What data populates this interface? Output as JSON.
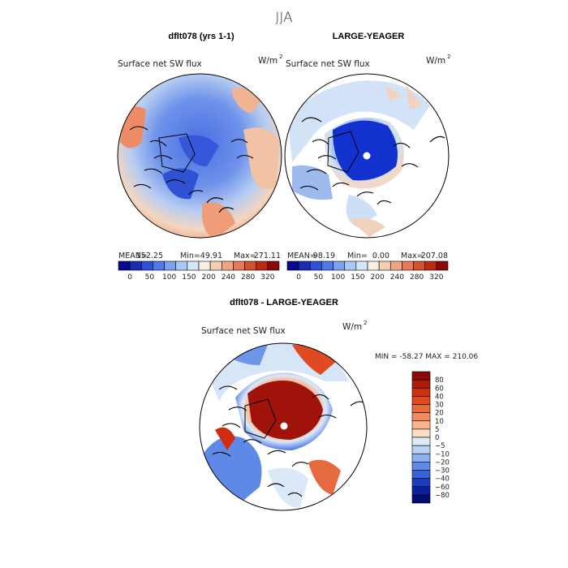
{
  "season": "JJA",
  "panels": [
    {
      "title": "dflt078 (yrs 1-1)",
      "field": "Surface net SW flux",
      "units": "W/m",
      "units_sup": "2",
      "stats": {
        "mean_label": "MEAN=",
        "mean": "152.25",
        "min_label": "Min=",
        "min": "49.91",
        "max_label": "Max=",
        "max": "271.11"
      }
    },
    {
      "title": "LARGE-YEAGER",
      "field": "Surface net SW flux",
      "units": "W/m",
      "units_sup": "2",
      "stats": {
        "mean_label": "MEAN=",
        "mean": "98.19",
        "min_label": "Min=",
        "min": "0.00",
        "max_label": "Max=",
        "max": "207.08"
      }
    }
  ],
  "colorbar_top": {
    "labels": [
      "0",
      "50",
      "100",
      "150",
      "200",
      "240",
      "280",
      "320"
    ],
    "colors": [
      "#08088c",
      "#1a2bb6",
      "#2f52d6",
      "#4f78e8",
      "#7ba2f0",
      "#a9c8f4",
      "#d6e6f6",
      "#f7eee4",
      "#f6cdb3",
      "#f2a585",
      "#e87a5a",
      "#d4502e",
      "#bb2a12",
      "#8c0a05"
    ]
  },
  "diff": {
    "title": "dflt078 - LARGE-YEAGER",
    "field": "Surface net SW flux",
    "units": "W/m",
    "units_sup": "2",
    "minmax": "MIN = -58.27 MAX = 210.06",
    "colorbar": {
      "labels": [
        "80",
        "60",
        "40",
        "30",
        "20",
        "10",
        "5",
        "0",
        "−5",
        "−10",
        "−20",
        "−30",
        "−40",
        "−60",
        "−80"
      ],
      "colors": [
        "#8c0a05",
        "#b01a08",
        "#cc300e",
        "#e04a18",
        "#ec6a34",
        "#f38c5c",
        "#f7b48f",
        "#f9dcc6",
        "#dfeaf6",
        "#b7d2f4",
        "#8ab0ef",
        "#5f8ae6",
        "#3762da",
        "#1c3cc0",
        "#0d1f9c",
        "#060b6e"
      ]
    }
  }
}
